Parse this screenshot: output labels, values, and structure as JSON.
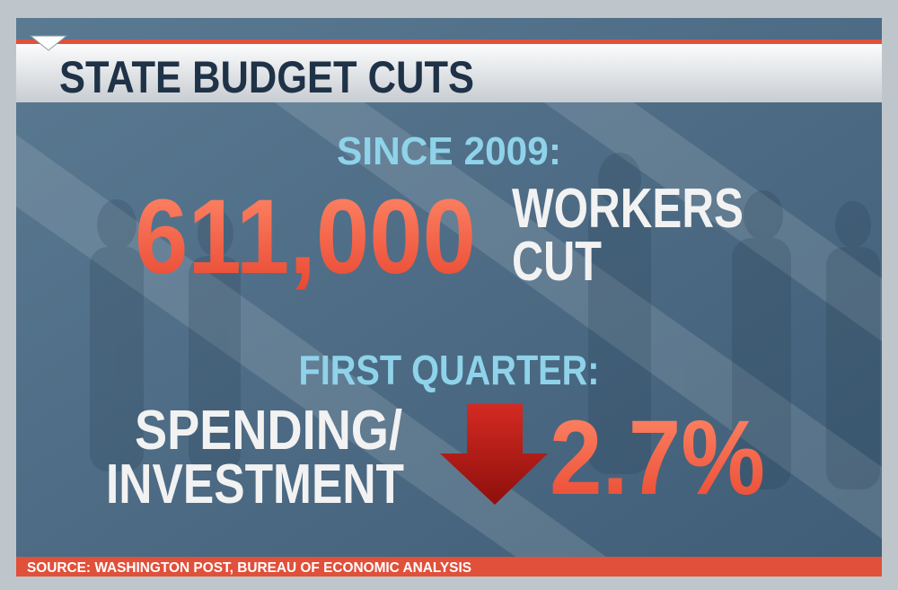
{
  "header": {
    "title": "STATE BUDGET CUTS"
  },
  "stat1": {
    "label": "SINCE 2009:",
    "value": "611,000",
    "line1": "WORKERS",
    "line2": "CUT"
  },
  "stat2": {
    "label": "FIRST QUARTER:",
    "line1": "SPENDING/",
    "line2": "INVESTMENT",
    "value": "2.7%"
  },
  "footer": {
    "source": "SOURCE: WASHINGTON POST, BUREAU OF ECONOMIC ANALYSIS"
  }
}
